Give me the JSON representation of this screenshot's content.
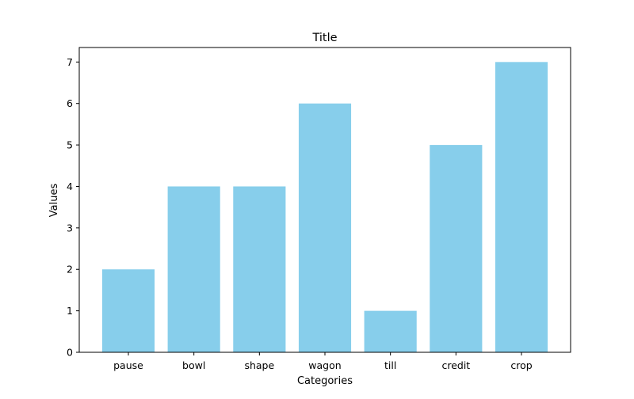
{
  "chart_data": {
    "type": "bar",
    "title": "Title",
    "xlabel": "Categories",
    "ylabel": "Values",
    "categories": [
      "pause",
      "bowl",
      "shape",
      "wagon",
      "till",
      "credit",
      "crop"
    ],
    "values": [
      2,
      4,
      4,
      6,
      1,
      5,
      7
    ],
    "ylim": [
      0,
      7.35
    ],
    "yticks": [
      0,
      1,
      2,
      3,
      4,
      5,
      6,
      7
    ],
    "grid": false,
    "legend": false,
    "bar_color": "#87ceeb",
    "axis_color": "#000000",
    "background_color": "#ffffff"
  }
}
